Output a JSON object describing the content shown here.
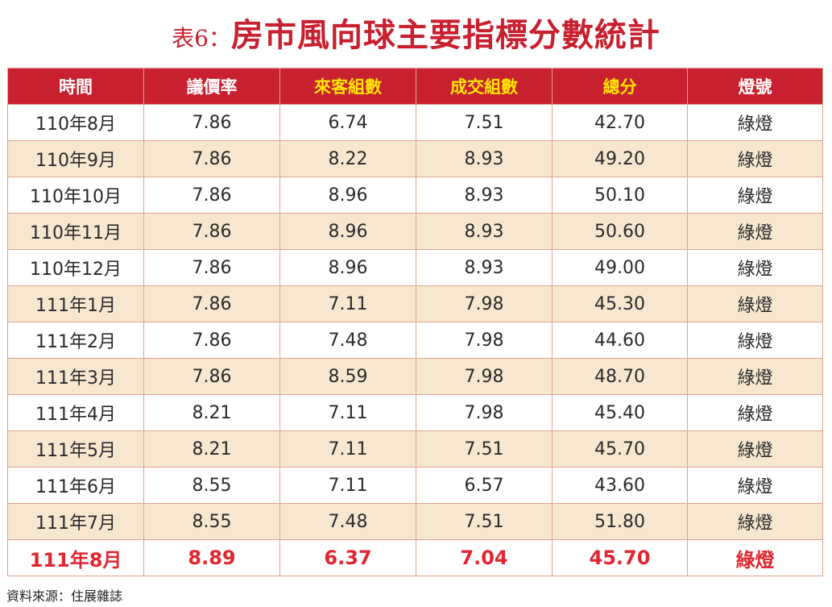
{
  "title": {
    "prefix": "表6：",
    "main": "房市風向球主要指標分數統計"
  },
  "colors": {
    "header_bg": "#c8202f",
    "header_text_white": "#ffffff",
    "header_text_yellow": "#ffe600",
    "row_alt_bg": "#f8e7cf",
    "highlight_text": "#e02630",
    "border": "#e0a38c"
  },
  "table": {
    "headers": [
      {
        "label": "時間",
        "color": "white"
      },
      {
        "label": "議價率",
        "color": "white"
      },
      {
        "label": "來客組數",
        "color": "yellow"
      },
      {
        "label": "成交組數",
        "color": "yellow"
      },
      {
        "label": "總分",
        "color": "yellow"
      },
      {
        "label": "燈號",
        "color": "white"
      }
    ],
    "rows": [
      {
        "period": "110年8月",
        "bargain_rate": "7.86",
        "visitors": "6.74",
        "deals": "7.51",
        "total": "42.70",
        "signal": "綠燈"
      },
      {
        "period": "110年9月",
        "bargain_rate": "7.86",
        "visitors": "8.22",
        "deals": "8.93",
        "total": "49.20",
        "signal": "綠燈"
      },
      {
        "period": "110年10月",
        "bargain_rate": "7.86",
        "visitors": "8.96",
        "deals": "8.93",
        "total": "50.10",
        "signal": "綠燈"
      },
      {
        "period": "110年11月",
        "bargain_rate": "7.86",
        "visitors": "8.96",
        "deals": "8.93",
        "total": "50.60",
        "signal": "綠燈"
      },
      {
        "period": "110年12月",
        "bargain_rate": "7.86",
        "visitors": "8.96",
        "deals": "8.93",
        "total": "49.00",
        "signal": "綠燈"
      },
      {
        "period": "111年1月",
        "bargain_rate": "7.86",
        "visitors": "7.11",
        "deals": "7.98",
        "total": "45.30",
        "signal": "綠燈"
      },
      {
        "period": "111年2月",
        "bargain_rate": "7.86",
        "visitors": "7.48",
        "deals": "7.98",
        "total": "44.60",
        "signal": "綠燈"
      },
      {
        "period": "111年3月",
        "bargain_rate": "7.86",
        "visitors": "8.59",
        "deals": "7.98",
        "total": "48.70",
        "signal": "綠燈"
      },
      {
        "period": "111年4月",
        "bargain_rate": "8.21",
        "visitors": "7.11",
        "deals": "7.98",
        "total": "45.40",
        "signal": "綠燈"
      },
      {
        "period": "111年5月",
        "bargain_rate": "8.21",
        "visitors": "7.11",
        "deals": "7.51",
        "total": "45.70",
        "signal": "綠燈"
      },
      {
        "period": "111年6月",
        "bargain_rate": "8.55",
        "visitors": "7.11",
        "deals": "6.57",
        "total": "43.60",
        "signal": "綠燈"
      },
      {
        "period": "111年7月",
        "bargain_rate": "8.55",
        "visitors": "7.48",
        "deals": "7.51",
        "total": "51.80",
        "signal": "綠燈"
      },
      {
        "period": "111年8月",
        "bargain_rate": "8.89",
        "visitors": "6.37",
        "deals": "7.04",
        "total": "45.70",
        "signal": "綠燈",
        "highlight": true
      }
    ]
  },
  "source": "資料來源：住展雜誌"
}
